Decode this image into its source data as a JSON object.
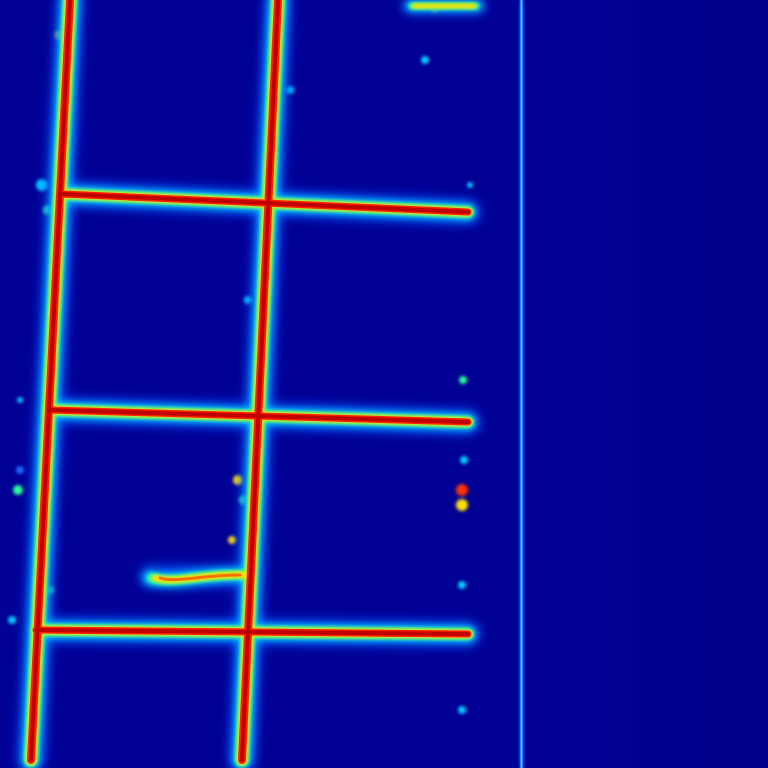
{
  "image": {
    "kind": "heatmap",
    "colormap": "jet",
    "subject": "segmentation-probability-map",
    "colors": {
      "background": "#00008a",
      "background_deep": "#000080",
      "low": "#1f6cff",
      "mid_low": "#00cfff",
      "mid": "#2aff9a",
      "mid_high": "#ffe000",
      "high": "#ff3000",
      "peak": "#c00000"
    }
  }
}
